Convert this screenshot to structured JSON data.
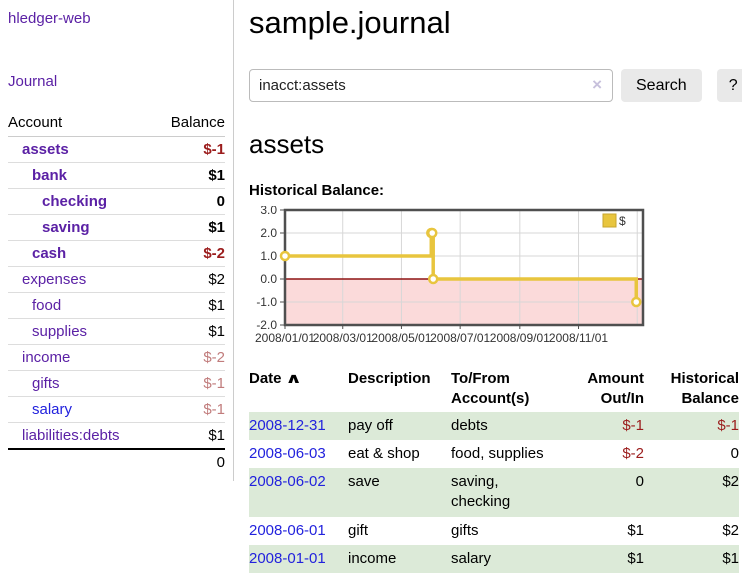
{
  "app": {
    "brand": "hledger-web",
    "nav_journal": "Journal"
  },
  "sidebar": {
    "accounts_table": {
      "headers": {
        "account": "Account",
        "balance": "Balance"
      },
      "rows": [
        {
          "name": "assets",
          "level": 1,
          "bold": true,
          "link_color": "purple",
          "balance": "$-1",
          "balance_color": "red"
        },
        {
          "name": "bank",
          "level": 2,
          "bold": true,
          "link_color": "purple",
          "balance": "$1",
          "balance_color": "black"
        },
        {
          "name": "checking",
          "level": 3,
          "bold": true,
          "link_color": "purple",
          "balance": "0",
          "balance_color": "black"
        },
        {
          "name": "saving",
          "level": 3,
          "bold": true,
          "link_color": "purple",
          "balance": "$1",
          "balance_color": "black"
        },
        {
          "name": "cash",
          "level": 2,
          "bold": true,
          "link_color": "purple",
          "balance": "$-2",
          "balance_color": "red"
        },
        {
          "name": "expenses",
          "level": 1,
          "bold": false,
          "link_color": "purple",
          "balance": "$2",
          "balance_color": "black"
        },
        {
          "name": "food",
          "level": 2,
          "bold": false,
          "link_color": "purple",
          "balance": "$1",
          "balance_color": "black"
        },
        {
          "name": "supplies",
          "level": 2,
          "bold": false,
          "link_color": "purple",
          "balance": "$1",
          "balance_color": "black"
        },
        {
          "name": "income",
          "level": 1,
          "bold": false,
          "link_color": "purple",
          "balance": "$-2",
          "balance_color": "softred"
        },
        {
          "name": "gifts",
          "level": 2,
          "bold": false,
          "link_color": "purple",
          "balance": "$-1",
          "balance_color": "softred"
        },
        {
          "name": "salary",
          "level": 2,
          "bold": false,
          "link_color": "blue",
          "balance": "$-1",
          "balance_color": "softred"
        },
        {
          "name": "liabilities:debts",
          "level": 1,
          "bold": false,
          "link_color": "purple",
          "balance": "$1",
          "balance_color": "black"
        }
      ],
      "total": "0"
    }
  },
  "header": {
    "title": "sample.journal"
  },
  "search": {
    "value": "inacct:assets",
    "clear_icon": "×",
    "button": "Search",
    "help_button": "?"
  },
  "account_page": {
    "heading": "assets",
    "chart_label": "Historical Balance:"
  },
  "chart_data": {
    "type": "line",
    "style": "step",
    "title": "Historical Balance:",
    "series": [
      {
        "name": "$",
        "color": "#e8c53e",
        "points": [
          [
            "2008-01-01",
            1
          ],
          [
            "2008-06-01",
            2
          ],
          [
            "2008-06-02",
            2
          ],
          [
            "2008-06-03",
            0
          ],
          [
            "2008-12-31",
            -1
          ]
        ]
      }
    ],
    "ylim": [
      -2,
      3
    ],
    "y_ticks": [
      3.0,
      2.0,
      1.0,
      0.0,
      -1.0,
      -2.0
    ],
    "x_ticks": [
      "2008/01/01",
      "2008/03/01",
      "2008/05/01",
      "2008/07/01",
      "2008/09/01",
      "2008/11/01"
    ],
    "x_range_days": [
      0,
      372
    ],
    "legend": {
      "label": "$",
      "position": "top-right"
    },
    "grid": true,
    "negative_region_color": "#fbdada",
    "zero_line_color": "#8e1414",
    "grid_color": "#d7d7d7",
    "border_color": "#4f4f4f",
    "legend_border_color": "#c7a52e"
  },
  "register_table": {
    "headers": {
      "date": "Date",
      "sort_icon": "∧",
      "description": "Description",
      "accounts": "To/From Account(s)",
      "amount": "Amount Out/In",
      "balance": "Historical Balance"
    },
    "rows": [
      {
        "date": "2008-12-31",
        "description": "pay off",
        "accounts": "debts",
        "amount": "$-1",
        "amount_color": "red",
        "balance": "$-1",
        "balance_color": "red"
      },
      {
        "date": "2008-06-03",
        "description": "eat & shop",
        "accounts": "food, supplies",
        "amount": "$-2",
        "amount_color": "red",
        "balance": "0",
        "balance_color": "black"
      },
      {
        "date": "2008-06-02",
        "description": "save",
        "accounts": "saving, checking",
        "amount": "0",
        "amount_color": "black",
        "balance": "$2",
        "balance_color": "black"
      },
      {
        "date": "2008-06-01",
        "description": "gift",
        "accounts": "gifts",
        "amount": "$1",
        "amount_color": "black",
        "balance": "$2",
        "balance_color": "black"
      },
      {
        "date": "2008-01-01",
        "description": "income",
        "accounts": "salary",
        "amount": "$1",
        "amount_color": "black",
        "balance": "$1",
        "balance_color": "black"
      }
    ]
  },
  "colors": {
    "accent_purple": "#5b21a5",
    "link_blue": "#2222dd",
    "negative_red": "#9b1c1c",
    "negative_soft_red": "#c17c7c",
    "row_stripe_green": "#dcead8",
    "chart_gold": "#e8c53e",
    "chart_negative_pink": "#fbdada",
    "chart_zero_line": "#8e1414"
  }
}
